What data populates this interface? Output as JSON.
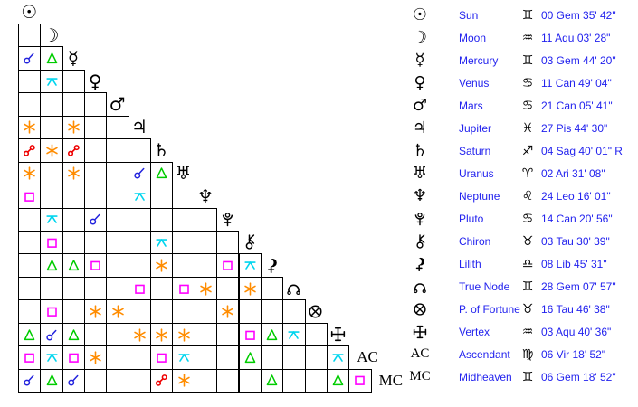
{
  "colors": {
    "background": "#ffffff",
    "grid_line": "#000000",
    "glyph": "#000000",
    "table_text": "#2222ee",
    "aspects": {
      "conjunction": "#2222dd",
      "sextile": "#ff8c00",
      "square": "#ff00ff",
      "trine": "#00cc00",
      "opposition": "#ee0000",
      "quincunx": "#00d5ee"
    }
  },
  "planets": [
    {
      "id": "sun",
      "name": "Sun",
      "glyph_char": "☉",
      "sign": "Gemini",
      "sign_char": "♊",
      "position": "00 Gem 35' 42\"",
      "aspects": []
    },
    {
      "id": "moon",
      "name": "Moon",
      "glyph_char": "☽",
      "sign": "Aquarius",
      "sign_char": "♒",
      "position": "11 Aqu 03' 28\"",
      "aspects": [
        ""
      ]
    },
    {
      "id": "mercury",
      "name": "Mercury",
      "glyph_char": "☿",
      "sign": "Gemini",
      "sign_char": "♊",
      "position": "03 Gem 44' 20\"",
      "aspects": [
        "conjunction",
        "trine"
      ]
    },
    {
      "id": "venus",
      "name": "Venus",
      "glyph_char": "♀",
      "sign": "Cancer",
      "sign_char": "♋",
      "position": "11 Can 49' 04\"",
      "aspects": [
        "",
        "quincunx",
        ""
      ]
    },
    {
      "id": "mars",
      "name": "Mars",
      "glyph_char": "♂",
      "sign": "Cancer",
      "sign_char": "♋",
      "position": "21 Can 05' 41\"",
      "aspects": [
        "",
        "",
        "",
        ""
      ]
    },
    {
      "id": "jupiter",
      "name": "Jupiter",
      "glyph_char": "♃",
      "sign": "Pisces",
      "sign_char": "♓",
      "position": "27 Pis 44' 30\"",
      "aspects": [
        "sextile",
        "",
        "sextile",
        "",
        ""
      ]
    },
    {
      "id": "saturn",
      "name": "Saturn",
      "glyph_char": "♄",
      "sign": "Sagittarius",
      "sign_char": "♐",
      "position": "04 Sag 40' 01\" R",
      "aspects": [
        "opposition",
        "sextile",
        "opposition",
        "",
        "",
        ""
      ]
    },
    {
      "id": "uranus",
      "name": "Uranus",
      "glyph_char": "♅",
      "sign": "Aries",
      "sign_char": "♈",
      "position": "02 Ari 31' 08\"",
      "aspects": [
        "sextile",
        "",
        "sextile",
        "",
        "",
        "conjunction",
        "trine"
      ]
    },
    {
      "id": "neptune",
      "name": "Neptune",
      "glyph_char": "♆",
      "sign": "Leo",
      "sign_char": "♌",
      "position": "24 Leo 16' 01\"",
      "aspects": [
        "square",
        "",
        "",
        "",
        "",
        "quincunx",
        "",
        ""
      ]
    },
    {
      "id": "pluto",
      "name": "Pluto",
      "glyph_svg": "pluto",
      "sign": "Cancer",
      "sign_char": "♋",
      "position": "14 Can 20' 56\"",
      "aspects": [
        "",
        "quincunx",
        "",
        "conjunction",
        "",
        "",
        "",
        "",
        ""
      ]
    },
    {
      "id": "chiron",
      "name": "Chiron",
      "glyph_svg": "chiron",
      "sign": "Taurus",
      "sign_char": "♉",
      "position": "03 Tau 30' 39\"",
      "aspects": [
        "",
        "square",
        "",
        "",
        "",
        "",
        "quincunx",
        "",
        "",
        ""
      ]
    },
    {
      "id": "lilith",
      "name": "Lilith",
      "glyph_svg": "lilith",
      "sign": "Libra",
      "sign_char": "♎",
      "position": "08 Lib 45' 31\"",
      "aspects": [
        "",
        "trine",
        "trine",
        "square",
        "",
        "",
        "sextile",
        "",
        "",
        "square",
        "quincunx"
      ]
    },
    {
      "id": "truenode",
      "name": "True Node",
      "glyph_svg": "truenode",
      "sign": "Gemini",
      "sign_char": "♊",
      "position": "28 Gem 07' 57\"",
      "aspects": [
        "",
        "",
        "",
        "",
        "",
        "square",
        "",
        "square",
        "sextile",
        "",
        "sextile",
        ""
      ]
    },
    {
      "id": "pfortune",
      "name": "P. of Fortune",
      "glyph_svg": "pfortune",
      "sign": "Taurus",
      "sign_char": "♉",
      "position": "16 Tau 46' 38\"",
      "aspects": [
        "",
        "square",
        "",
        "sextile",
        "sextile",
        "",
        "",
        "",
        "",
        "sextile",
        "",
        "",
        ""
      ]
    },
    {
      "id": "vertex",
      "name": "Vertex",
      "glyph_svg": "vertex",
      "sign": "Aquarius",
      "sign_char": "♒",
      "position": "03 Aqu 40' 36\"",
      "aspects": [
        "trine",
        "conjunction",
        "trine",
        "",
        "",
        "sextile",
        "sextile",
        "sextile",
        "",
        "",
        "square",
        "trine",
        "quincunx",
        ""
      ]
    },
    {
      "id": "ascendant",
      "name": "Ascendant",
      "glyph_text": "AC",
      "sign": "Virgo",
      "sign_char": "♍",
      "position": "06 Vir 18' 52\"",
      "aspects": [
        "square",
        "quincunx",
        "square",
        "sextile",
        "",
        "",
        "square",
        "quincunx",
        "",
        "",
        "trine",
        "",
        "",
        "",
        "quincunx"
      ]
    },
    {
      "id": "midheaven",
      "name": "Midheaven",
      "glyph_text": "MC",
      "sign": "Gemini",
      "sign_char": "♊",
      "position": "06 Gem 18' 52\"",
      "aspects": [
        "conjunction",
        "trine",
        "conjunction",
        "",
        "",
        "",
        "opposition",
        "sextile",
        "",
        "",
        "",
        "trine",
        "",
        "",
        "trine",
        "square"
      ]
    }
  ]
}
